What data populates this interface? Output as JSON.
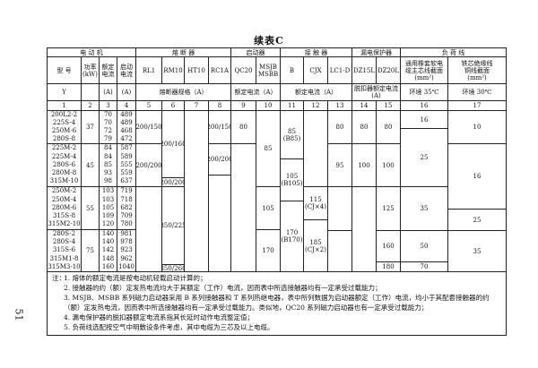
{
  "title": "续表C",
  "page_number": "51",
  "header": {
    "groups": [
      "电 动 机",
      "熔 断 器",
      "启动器",
      "接 触 器",
      "漏电保护器",
      "负 荷 线"
    ],
    "columns": [
      "型 号",
      "功率\n(kW)",
      "额定\n电流",
      "启动\n电流",
      "RL1",
      "RM10",
      "HT10",
      "RC1A",
      "QC20",
      "MSJB\nMSBB",
      "B",
      "CJX",
      "LC1-D",
      "DZ15L",
      "DZ20L",
      "通用橡套软电\n缆主芯线截面\n(mm²)",
      "铁芯绝缘线\n铜线截面\n(mm²)"
    ],
    "units": {
      "model": "Y",
      "rated": "(A)",
      "start": "(A)",
      "fuse_spec": "熔断器规格（A）",
      "starter_rated": "额定电流（A）",
      "contactor_rated": "额定电流（A）",
      "trip_rated": "脱扣器额定电流\n(A)",
      "env_35": "环境 35℃",
      "env_30": "环境 30℃"
    },
    "numbers": [
      "1",
      "2",
      "3",
      "4",
      "5",
      "6",
      "7",
      "8",
      "9",
      "10",
      "11",
      "12",
      "13",
      "14",
      "15",
      "16",
      "17"
    ]
  },
  "motor_groups": [
    {
      "models": [
        "200L2-2",
        "225S-4",
        "250M-6",
        "280S-8"
      ],
      "power": "37",
      "rated": [
        "70",
        "70",
        "72",
        "79"
      ],
      "start": [
        "489",
        "489",
        "468",
        "472"
      ]
    },
    {
      "models": [
        "225M-2",
        "225M-4",
        "280S-6",
        "280M-8",
        "315M-10"
      ],
      "power": "45",
      "rated": [
        "84",
        "84",
        "85",
        "93",
        "98"
      ],
      "start": [
        "587",
        "589",
        "555",
        "559",
        "637"
      ]
    },
    {
      "models": [
        "250M-2",
        "250M-4",
        "280M-6",
        "315S-8",
        "315M2-10"
      ],
      "power": "55",
      "rated": [
        "103",
        "103",
        "105",
        "109",
        "120"
      ],
      "start": [
        "719",
        "718",
        "682",
        "709",
        "780"
      ]
    },
    {
      "models": [
        "280S-2",
        "280S-4",
        "315S-6",
        "315M1-8",
        "315M3-10"
      ],
      "power": "75",
      "rated": [
        "140",
        "140",
        "142",
        "148",
        "160"
      ],
      "start": [
        "981",
        "978",
        "923",
        "962",
        "1040"
      ]
    }
  ],
  "fuse": {
    "rl1": [
      "200/150",
      "200/200"
    ],
    "rm10": [
      "200/160",
      "200/200",
      "350/225",
      "350/260"
    ],
    "rc1a": [
      "200/150",
      "200/200"
    ]
  },
  "starter": {
    "qc20": [
      "80"
    ],
    "msjb": [
      "85",
      "105",
      "170"
    ]
  },
  "contactor": {
    "b": [
      "85\n(B85)",
      "105\n(B105)",
      "170\n(B170)"
    ],
    "cjx": [
      "115\n(CJ×4)",
      "185\n(CJ×2)"
    ],
    "lc1d": [
      "80",
      "95"
    ]
  },
  "leakage": {
    "dz15l": [
      "80",
      "100"
    ],
    "dz20l": [
      "80",
      "100",
      "125",
      "160",
      "180"
    ]
  },
  "cable": {
    "rubber_35": [
      "16",
      "25",
      "35",
      "50",
      "70"
    ],
    "wire_30": [
      "10",
      "16",
      "25",
      "35"
    ]
  },
  "notes": {
    "prefix": "注：",
    "items": [
      "1. 熔体的额定电流是按电动机轻载启动计算的；",
      "2. 接触器的约（额）定发热电流均大于其额定（工作）电流，因而表中所选接触器均有一定承受过载能力；",
      "3. MSJB、MSBB 系列磁力启动器采用 B 系列接触器和 T 系列热继电器，表中所列数据为启动器额定（工作）电流，均小于其配套接触器的约（额）定发热电流，因而表中所选接触器均有一定承受过载能力。类似地，QC20 系列磁力启动器也有一定承受过载能力；",
      "4. 漏电保护器的脱扣器额定电流系指其长延时动作电流整定值；",
      "5. 负荷线选配按空气中明敷设条件考虑，其中电缆为三芯及以上电缆。"
    ]
  }
}
